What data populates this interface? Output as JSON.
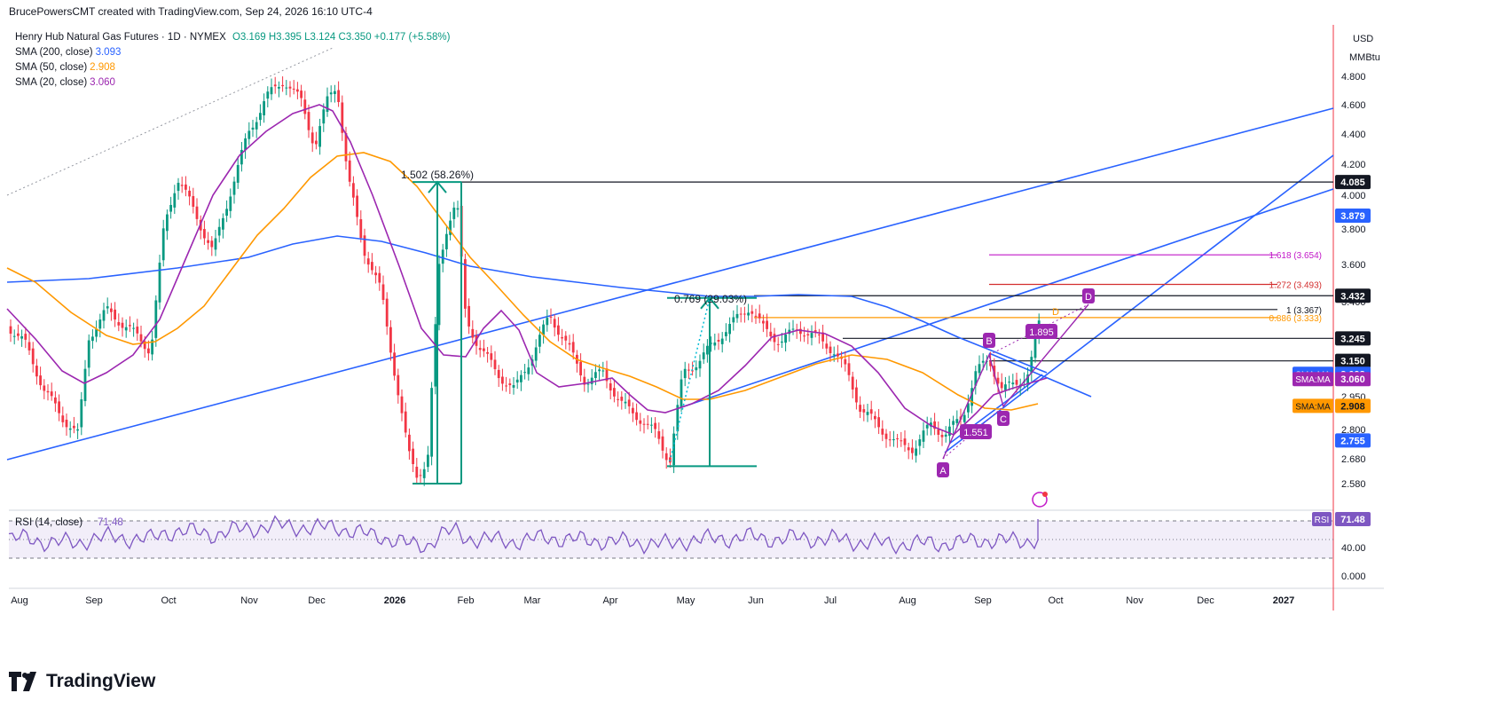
{
  "header": {
    "attribution": "BrucePowersCMT created with TradingView.com, Sep 24, 2026 16:10 UTC-4"
  },
  "legend": {
    "symbol": "Henry Hub Natural Gas Futures · 1D · NYMEX",
    "ohlc": "O3.169 H3.395 L3.124 C3.350 +0.177 (+5.58%)",
    "ohlc_color": "#089981",
    "sma200_label": "SMA (200, close)",
    "sma200_value": "3.093",
    "sma50_label": "SMA (50, close)",
    "sma50_value": "2.908",
    "sma20_label": "SMA (20, close)",
    "sma20_value": "3.060",
    "rsi_label": "RSI (14, close)",
    "rsi_value": "71.48"
  },
  "colors": {
    "sma200": "#2962ff",
    "sma50": "#ff9800",
    "sma20": "#9c27b0",
    "trendline": "#2962ff",
    "measure": "#089981",
    "fib_1618": "#c218c8",
    "fib_1272": "#d32f2f",
    "fib_0886": "#ff9800",
    "pattern": "#9c27b0",
    "rsi": "#7e57c2",
    "up": "#089981",
    "down": "#f23645"
  },
  "brand": {
    "name": "TradingView"
  },
  "chart_data": {
    "type": "candlestick",
    "currency": "USD",
    "unit": "MMBtu",
    "x_axis_labels": [
      "Aug",
      "Sep",
      "Oct",
      "Nov",
      "Dec",
      "2026",
      "Feb",
      "Mar",
      "Apr",
      "May",
      "Jun",
      "Jul",
      "Aug",
      "Sep",
      "Oct",
      "Nov",
      "Dec",
      "2027"
    ],
    "y_ticks": [
      "4.800",
      "4.600",
      "4.400",
      "4.200",
      "4.000",
      "3.800",
      "3.600",
      "3.400",
      "3.100",
      "2.950",
      "2.800",
      "2.680",
      "2.580"
    ],
    "ylim": [
      2.55,
      5.0
    ],
    "rsi_ticks": [
      "40.00",
      "0.000"
    ],
    "price_tags": [
      {
        "text": "4.085",
        "value": 4.085,
        "style": "black"
      },
      {
        "text": "3.879",
        "value": 3.879,
        "style": "blue"
      },
      {
        "text": "3.432",
        "value": 3.432,
        "style": "black"
      },
      {
        "text": "3.245",
        "value": 3.245,
        "style": "black"
      },
      {
        "text": "3.150",
        "value": 3.15,
        "style": "black"
      },
      {
        "text": "3.093",
        "value": 3.093,
        "style": "sma200",
        "prefix": "SMA:MA"
      },
      {
        "text": "3.060",
        "value": 3.06,
        "style": "sma20",
        "prefix": "SMA:MA"
      },
      {
        "text": "2.908",
        "value": 2.908,
        "style": "sma50",
        "prefix": "SMA:MA"
      },
      {
        "text": "2.755",
        "value": 2.755,
        "style": "blue"
      }
    ],
    "horizontal_levels": [
      4.085,
      3.432,
      3.245,
      3.15
    ],
    "fib_levels": [
      {
        "label": "1.618 (3.654)",
        "value": 3.654,
        "color": "#c218c8"
      },
      {
        "label": "1.272 (3.493)",
        "value": 3.493,
        "color": "#d32f2f"
      },
      {
        "label": "1 (3.367)",
        "value": 3.367,
        "color": "#131722"
      },
      {
        "label": "0.886 (3.333)",
        "value": 3.333,
        "color": "#ff9800"
      }
    ],
    "measurements": [
      {
        "label": "1.502 (58.26%)",
        "low": 2.58,
        "high": 4.085
      },
      {
        "label": "0.769 (29.03%)",
        "low": 2.65,
        "high": 3.42
      }
    ],
    "pattern_points": [
      {
        "label": "A",
        "value": 2.68
      },
      {
        "label": "B",
        "value": 3.15
      },
      {
        "label": "C",
        "value": 2.94
      },
      {
        "label": "D",
        "value": 3.43
      }
    ],
    "pattern_badges": [
      "1.895",
      "1.551"
    ],
    "pattern_d_label": "D",
    "rsi_tag": {
      "prefix": "RSI",
      "text": "71.48"
    },
    "series": [
      {
        "name": "SMA (200, close)",
        "color": "#2962ff"
      },
      {
        "name": "SMA (50, close)",
        "color": "#ff9800"
      },
      {
        "name": "SMA (20, close)",
        "color": "#9c27b0"
      },
      {
        "name": "RSI (14, close)",
        "color": "#7e57c2"
      }
    ]
  }
}
